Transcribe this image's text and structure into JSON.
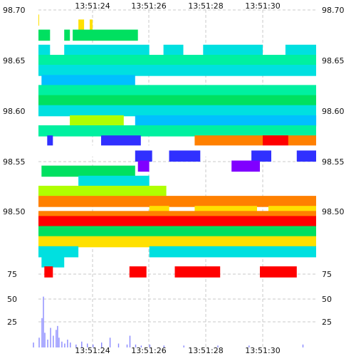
{
  "chart_data": {
    "type": "heatmap",
    "title": "",
    "xlabel": "",
    "ylabel": "",
    "x_ticks": [
      "13:51:24",
      "13:51:26",
      "13:51:28",
      "13:51:30"
    ],
    "y_ticks_left": [
      "98.70",
      "98.65",
      "98.60",
      "98.55",
      "98.50"
    ],
    "y_ticks_right": [
      "98.70",
      "98.65",
      "98.60",
      "98.55",
      "98.50"
    ],
    "x_range_seconds": [
      21.8,
      32.7
    ],
    "y_range": [
      98.455,
      98.7
    ],
    "grid": true,
    "legend": "none",
    "palette": {
      "green": "#00e060",
      "teal": "#00f0a0",
      "cyan": "#00e0e0",
      "sky": "#00c0ff",
      "lime": "#b0ff00",
      "blue": "#3030ff",
      "violet": "#8000ff",
      "white": "#ffffff",
      "orange": "#ff8000",
      "yellow": "#ffe000",
      "red": "#ff0000"
    },
    "heatmap_rows": [
      {
        "price": 98.69,
        "color": "yellow",
        "segments": [
          [
            21.8,
            21.9
          ]
        ]
      },
      {
        "price": 98.685,
        "color": "yellow",
        "segments": [
          [
            23.5,
            23.7
          ],
          [
            23.9,
            24.0
          ]
        ]
      },
      {
        "price": 98.675,
        "color": "green",
        "segments": [
          [
            21.8,
            22.5
          ],
          [
            23.0,
            23.2
          ],
          [
            23.3,
            25.6
          ]
        ]
      },
      {
        "price": 98.66,
        "color": "cyan",
        "segments": [
          [
            21.8,
            22.5
          ],
          [
            23.0,
            26.0
          ],
          [
            26.5,
            27.2
          ],
          [
            27.9,
            30.0
          ],
          [
            30.8,
            32.0
          ]
        ]
      },
      {
        "price": 98.65,
        "color": "teal",
        "segments": [
          [
            21.8,
            32.0
          ]
        ]
      },
      {
        "price": 98.64,
        "color": "cyan",
        "segments": [
          [
            21.8,
            32.0
          ]
        ]
      },
      {
        "price": 98.63,
        "color": "sky",
        "segments": [
          [
            22.2,
            25.5
          ]
        ]
      },
      {
        "price": 98.62,
        "color": "teal",
        "segments": [
          [
            21.8,
            32.0
          ]
        ]
      },
      {
        "price": 98.61,
        "color": "green",
        "segments": [
          [
            21.8,
            32.0
          ]
        ]
      },
      {
        "price": 98.6,
        "color": "cyan",
        "segments": [
          [
            21.8,
            32.0
          ]
        ]
      },
      {
        "price": 98.59,
        "color": "lime",
        "segments": [
          [
            23.2,
            25.1
          ]
        ]
      },
      {
        "price": 98.59,
        "color": "sky",
        "segments": [
          [
            25.5,
            32.0
          ]
        ]
      },
      {
        "price": 98.58,
        "color": "teal",
        "segments": [
          [
            21.8,
            32.0
          ]
        ]
      },
      {
        "price": 98.57,
        "color": "blue",
        "segments": [
          [
            22.4,
            22.6
          ],
          [
            24.3,
            25.7
          ]
        ]
      },
      {
        "price": 98.57,
        "color": "orange",
        "segments": [
          [
            27.6,
            32.0
          ]
        ]
      },
      {
        "price": 98.57,
        "color": "red",
        "segments": [
          [
            30.0,
            30.9
          ]
        ]
      },
      {
        "price": 98.56,
        "color": "white",
        "segments": [
          [
            21.8,
            32.0
          ]
        ]
      },
      {
        "price": 98.555,
        "color": "blue",
        "segments": [
          [
            25.5,
            26.1
          ],
          [
            26.7,
            27.8
          ],
          [
            29.6,
            30.3
          ],
          [
            31.2,
            32.0
          ]
        ]
      },
      {
        "price": 98.545,
        "color": "violet",
        "segments": [
          [
            25.6,
            26.0
          ],
          [
            28.9,
            29.9
          ]
        ]
      },
      {
        "price": 98.54,
        "color": "green",
        "segments": [
          [
            22.2,
            25.5
          ]
        ]
      },
      {
        "price": 98.53,
        "color": "cyan",
        "segments": [
          [
            23.5,
            26.0
          ]
        ]
      },
      {
        "price": 98.52,
        "color": "lime",
        "segments": [
          [
            21.8,
            26.6
          ]
        ]
      },
      {
        "price": 98.51,
        "color": "orange",
        "segments": [
          [
            21.8,
            32.0
          ]
        ]
      },
      {
        "price": 98.5,
        "color": "yellow",
        "segments": [
          [
            26.0,
            26.7
          ],
          [
            27.6,
            29.8
          ],
          [
            30.2,
            32.0
          ]
        ]
      },
      {
        "price": 98.495,
        "color": "orange",
        "segments": [
          [
            21.8,
            32.0
          ]
        ]
      },
      {
        "price": 98.49,
        "color": "red",
        "segments": [
          [
            21.8,
            32.0
          ]
        ]
      },
      {
        "price": 98.48,
        "color": "green",
        "segments": [
          [
            21.8,
            32.0
          ]
        ]
      },
      {
        "price": 98.47,
        "color": "yellow",
        "segments": [
          [
            21.8,
            32.0
          ]
        ]
      },
      {
        "price": 98.46,
        "color": "cyan",
        "segments": [
          [
            21.8,
            23.5
          ],
          [
            26.0,
            32.0
          ]
        ]
      },
      {
        "price": 98.45,
        "color": "cyan",
        "segments": [
          [
            22.2,
            23.0
          ]
        ]
      },
      {
        "price": 98.44,
        "color": "red",
        "segments": [
          [
            22.3,
            22.6
          ],
          [
            25.3,
            25.9
          ],
          [
            26.9,
            28.5
          ],
          [
            29.9,
            31.2
          ]
        ]
      }
    ],
    "volume_panel": {
      "y_ticks_left": [
        "75",
        "50",
        "25"
      ],
      "y_ticks_right": [
        "75",
        "50",
        "25"
      ],
      "ylim": [
        0,
        75
      ],
      "color": "#8888ff",
      "bars": [
        {
          "x": 21.9,
          "value": 5
        },
        {
          "x": 22.1,
          "value": 10
        },
        {
          "x": 22.2,
          "value": 30
        },
        {
          "x": 22.25,
          "value": 52
        },
        {
          "x": 22.3,
          "value": 15
        },
        {
          "x": 22.4,
          "value": 8
        },
        {
          "x": 22.5,
          "value": 20
        },
        {
          "x": 22.6,
          "value": 12
        },
        {
          "x": 22.7,
          "value": 18
        },
        {
          "x": 22.75,
          "value": 22
        },
        {
          "x": 22.8,
          "value": 10
        },
        {
          "x": 22.9,
          "value": 6
        },
        {
          "x": 23.0,
          "value": 4
        },
        {
          "x": 23.1,
          "value": 8
        },
        {
          "x": 23.2,
          "value": 5
        },
        {
          "x": 23.4,
          "value": 3
        },
        {
          "x": 23.6,
          "value": 6
        },
        {
          "x": 23.8,
          "value": 4
        },
        {
          "x": 24.0,
          "value": 3
        },
        {
          "x": 24.3,
          "value": 5
        },
        {
          "x": 24.6,
          "value": 10
        },
        {
          "x": 24.9,
          "value": 4
        },
        {
          "x": 25.2,
          "value": 3
        },
        {
          "x": 25.3,
          "value": 12
        },
        {
          "x": 25.5,
          "value": 3
        },
        {
          "x": 25.7,
          "value": 2
        },
        {
          "x": 26.0,
          "value": 3
        },
        {
          "x": 26.5,
          "value": 2
        },
        {
          "x": 27.2,
          "value": 2
        },
        {
          "x": 28.4,
          "value": 2
        },
        {
          "x": 29.5,
          "value": 2
        },
        {
          "x": 31.4,
          "value": 3
        }
      ]
    }
  }
}
